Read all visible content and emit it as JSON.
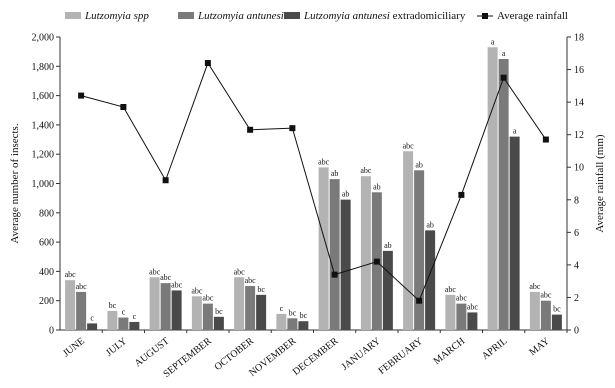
{
  "chart_data": {
    "type": "bar",
    "categories": [
      "JUNE",
      "JULY",
      "AUGUST",
      "SEPTEMBER",
      "OCTOBER",
      "NOVEMBER",
      "DECEMBER",
      "JANUARY",
      "FEBRUARY",
      "MARCH",
      "APRIL",
      "MAY"
    ],
    "ylabel": "Average number of insects.",
    "y2label": "Average rainfall (mm)",
    "ylim": [
      0,
      2000
    ],
    "y2lim": [
      0,
      18
    ],
    "yticks": [
      "0",
      "200",
      "400",
      "600",
      "800",
      "1,000",
      "1,200",
      "1,400",
      "1,600",
      "1,800",
      "2,000"
    ],
    "y2ticks": [
      "0",
      "2",
      "4",
      "6",
      "8",
      "10",
      "12",
      "14",
      "16",
      "18"
    ],
    "legend_position": "top",
    "grid": false,
    "series": [
      {
        "name_parts": [
          {
            "text": "Lutzomyia spp",
            "italic": true
          }
        ],
        "color": "#b3b3b3",
        "values": [
          340,
          130,
          360,
          230,
          360,
          110,
          1110,
          1050,
          1220,
          240,
          1930,
          260
        ],
        "labels": [
          "abc",
          "bc",
          "abc",
          "abc",
          "abc",
          "c",
          "abc",
          "abc",
          "abc",
          "abc",
          "a",
          "abc"
        ]
      },
      {
        "name_parts": [
          {
            "text": "Lutzomyia antunesi",
            "italic": true
          }
        ],
        "color": "#7a7a7a",
        "values": [
          260,
          85,
          320,
          180,
          300,
          80,
          1030,
          940,
          1090,
          180,
          1850,
          200
        ],
        "labels": [
          "abc",
          "c",
          "abc",
          "abc",
          "abc",
          "bc",
          "ab",
          "ab",
          "ab",
          "abc",
          "a",
          "abc"
        ]
      },
      {
        "name_parts": [
          {
            "text": "Lutzomyia antunesi",
            "italic": true
          },
          {
            "text": " extradomiciliary",
            "italic": false
          }
        ],
        "color": "#4a4a4a",
        "values": [
          45,
          55,
          270,
          90,
          240,
          60,
          890,
          540,
          680,
          120,
          1320,
          105
        ],
        "labels": [
          "c",
          "c",
          "abc",
          "bc",
          "bc",
          "bc",
          "ab",
          "ab",
          "ab",
          "abc",
          "a",
          "bc"
        ]
      }
    ],
    "line_series": {
      "name": "Average rainfall",
      "axis": "right",
      "color": "#111111",
      "marker": "square",
      "values": [
        14.4,
        13.7,
        9.2,
        16.4,
        12.3,
        12.4,
        3.4,
        4.2,
        1.8,
        8.3,
        15.5,
        11.7
      ]
    }
  }
}
